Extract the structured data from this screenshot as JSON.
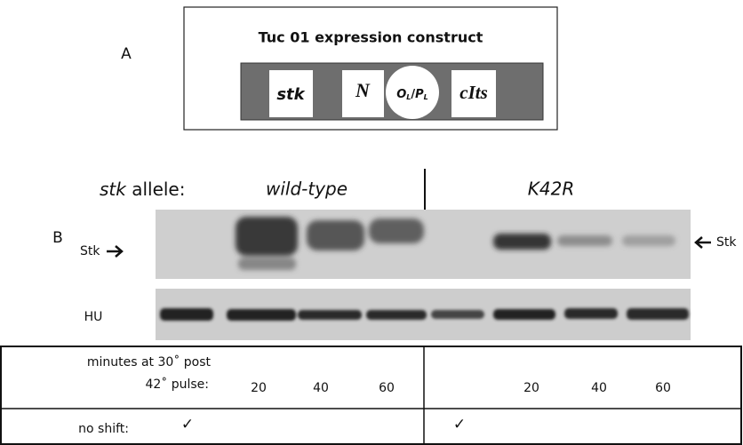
{
  "panel_a": {
    "label": "A",
    "construct": {
      "title": "Tuc 01 expression construct",
      "genes": [
        "stk",
        "N",
        "cIts"
      ],
      "promoter": {
        "o": "O",
        "o_sub": "L",
        "slash": "/",
        "p": "P",
        "p_sub": "L"
      }
    }
  },
  "panel_b": {
    "label": "B",
    "allele_label": {
      "gene": "stk",
      "suffix": "allele:"
    },
    "alleles": [
      "wild-type",
      "K42R"
    ],
    "blot_labels": {
      "stk_left": "Stk",
      "stk_right": "Stk",
      "hu": "HU"
    },
    "table": {
      "time_label": [
        "minutes at 30˚ post",
        "42˚ pulse:"
      ],
      "times": [
        "20",
        "40",
        "60",
        "20",
        "40",
        "60"
      ],
      "no_shift_label": "no shift:",
      "no_shift_marks": [
        "✓",
        "✓"
      ]
    }
  }
}
